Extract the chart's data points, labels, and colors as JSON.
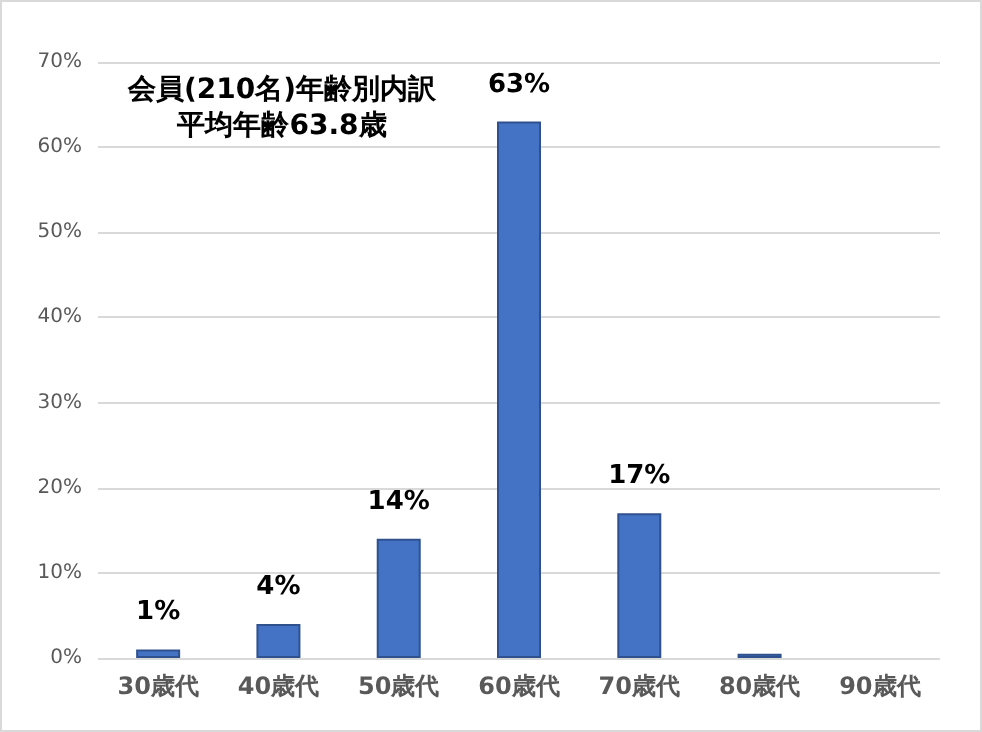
{
  "chart_data": {
    "type": "bar",
    "title": "会員(210名)年齢別内訳",
    "subtitle": "平均年齢63.8歳",
    "categories": [
      "30歳代",
      "40歳代",
      "50歳代",
      "60歳代",
      "70歳代",
      "80歳代",
      "90歳代"
    ],
    "values": [
      1,
      4,
      14,
      63,
      17,
      0.5,
      null
    ],
    "value_labels": [
      "1%",
      "4%",
      "14%",
      "63%",
      "17%",
      null,
      null
    ],
    "color": "#4472c4",
    "ylim": [
      0,
      70
    ],
    "yticks": [
      {
        "value": 0,
        "label": "0%"
      },
      {
        "value": 10,
        "label": "10%"
      },
      {
        "value": 20,
        "label": "20%"
      },
      {
        "value": 30,
        "label": "30%"
      },
      {
        "value": 40,
        "label": "40%"
      },
      {
        "value": 50,
        "label": "50%"
      },
      {
        "value": 60,
        "label": "60%"
      },
      {
        "value": 70,
        "label": "70%"
      }
    ],
    "grid": "y"
  }
}
